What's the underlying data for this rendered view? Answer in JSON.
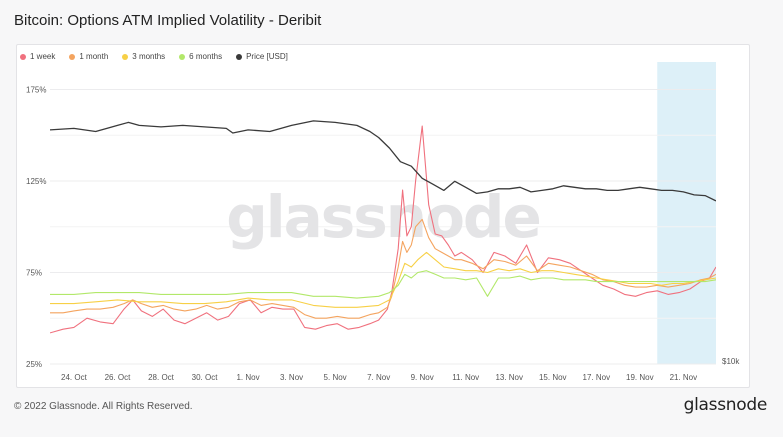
{
  "title": "Bitcoin: Options ATM Implied Volatility - Deribit",
  "footer": {
    "copyright": "© 2022 Glassnode. All Rights Reserved.",
    "logo": "glassnode"
  },
  "watermark": "glassnode",
  "chart_data": {
    "type": "line",
    "title": "Bitcoin: Options ATM Implied Volatility - Deribit",
    "legend_position": "top-left",
    "grid": "horizontal",
    "y_axis": {
      "ticks": [
        "175%",
        "125%",
        "75%",
        "25%"
      ],
      "tick_values": [
        175,
        125,
        75,
        25
      ],
      "ylim": [
        25,
        190
      ]
    },
    "y2_axis": {
      "label": "$10k"
    },
    "x_axis": {
      "ticks": [
        "24. Oct",
        "26. Oct",
        "28. Oct",
        "30. Oct",
        "1. Nov",
        "3. Nov",
        "5. Nov",
        "7. Nov",
        "9. Nov",
        "11. Nov",
        "13. Nov",
        "15. Nov",
        "17. Nov",
        "19. Nov",
        "21. Nov"
      ],
      "xlim_days": [
        22.9,
        53.5
      ]
    },
    "highlight_region": {
      "from": "19.8 Nov",
      "to": "21.6 Nov",
      "color": "#cfeaf5"
    },
    "series": [
      {
        "name": "1 week",
        "color": "#f0717e",
        "axis": "left",
        "x": [
          22.9,
          23.5,
          24.0,
          24.6,
          25.2,
          25.8,
          26.3,
          26.7,
          27.1,
          27.6,
          28.1,
          28.6,
          29.1,
          29.6,
          30.1,
          30.6,
          31.1,
          31.6,
          32.1,
          32.6,
          33.1,
          33.6,
          34.1,
          34.6,
          35.1,
          35.6,
          36.1,
          36.6,
          37.1,
          37.6,
          38.0,
          38.4,
          38.6,
          38.9,
          39.1,
          39.3,
          39.5,
          39.7,
          40.0,
          40.3,
          40.6,
          40.9,
          41.2,
          41.5,
          41.8,
          42.3,
          42.8,
          43.3,
          43.8,
          44.3,
          44.8,
          45.3,
          45.8,
          46.3,
          46.8,
          47.3,
          47.8,
          48.3,
          48.8,
          49.3,
          49.8,
          50.3,
          50.8,
          51.3,
          51.8,
          52.3,
          52.8,
          53.2,
          53.5
        ],
        "values": [
          42,
          44,
          45,
          50,
          48,
          47,
          55,
          60,
          54,
          51,
          55,
          49,
          47,
          50,
          53,
          49,
          51,
          58,
          60,
          53,
          56,
          55,
          55,
          45,
          44,
          46,
          47,
          44,
          45,
          47,
          49,
          55,
          64,
          88,
          120,
          95,
          100,
          125,
          155,
          112,
          96,
          95,
          90,
          84,
          86,
          82,
          75,
          86,
          84,
          80,
          90,
          75,
          83,
          82,
          80,
          76,
          72,
          68,
          66,
          63,
          62,
          64,
          65,
          63,
          64,
          66,
          70,
          72,
          78
        ]
      },
      {
        "name": "1 month",
        "color": "#f4a45f",
        "axis": "left",
        "x": [
          22.9,
          23.5,
          24.0,
          24.6,
          25.2,
          25.8,
          26.3,
          26.7,
          27.1,
          27.6,
          28.1,
          28.6,
          29.1,
          29.6,
          30.1,
          30.6,
          31.1,
          31.6,
          32.1,
          32.6,
          33.1,
          33.6,
          34.1,
          34.6,
          35.1,
          35.6,
          36.1,
          36.6,
          37.1,
          37.6,
          38.0,
          38.4,
          38.6,
          38.9,
          39.1,
          39.3,
          39.5,
          39.7,
          40.0,
          40.3,
          40.6,
          40.9,
          41.2,
          41.5,
          41.8,
          42.3,
          42.8,
          43.3,
          43.8,
          44.3,
          44.8,
          45.3,
          45.8,
          46.3,
          46.8,
          47.3,
          47.8,
          48.3,
          48.8,
          49.3,
          49.8,
          50.3,
          50.8,
          51.3,
          51.8,
          52.3,
          52.8,
          53.2,
          53.5
        ],
        "values": [
          53,
          53,
          54,
          55,
          55,
          56,
          58,
          60,
          58,
          56,
          57,
          55,
          54,
          55,
          57,
          55,
          56,
          59,
          60,
          57,
          58,
          57,
          56,
          52,
          50,
          50,
          51,
          50,
          50,
          52,
          53,
          56,
          62,
          78,
          92,
          86,
          90,
          100,
          104,
          94,
          88,
          86,
          84,
          82,
          82,
          80,
          77,
          82,
          81,
          79,
          84,
          76,
          80,
          79,
          78,
          76,
          74,
          71,
          70,
          68,
          67,
          67,
          68,
          67,
          68,
          69,
          71,
          72,
          74
        ]
      },
      {
        "name": "3 months",
        "color": "#f7d046",
        "axis": "left",
        "x": [
          22.9,
          24.0,
          25.0,
          26.0,
          27.0,
          28.0,
          29.0,
          30.0,
          31.0,
          32.0,
          33.0,
          34.0,
          35.0,
          36.0,
          37.0,
          38.0,
          38.5,
          38.9,
          39.2,
          39.5,
          39.8,
          40.2,
          40.6,
          41.0,
          41.5,
          42.0,
          42.5,
          43.0,
          43.5,
          44.0,
          44.5,
          45.0,
          45.5,
          46.0,
          46.5,
          47.0,
          47.5,
          48.0,
          48.5,
          49.0,
          49.5,
          50.0,
          50.5,
          51.0,
          51.5,
          52.0,
          52.5,
          53.0,
          53.5
        ],
        "values": [
          58,
          58,
          59,
          60,
          59,
          59,
          58,
          58,
          59,
          61,
          60,
          60,
          57,
          56,
          56,
          57,
          60,
          70,
          80,
          78,
          82,
          86,
          82,
          78,
          77,
          76,
          76,
          75,
          77,
          76,
          77,
          75,
          76,
          76,
          75,
          74,
          73,
          72,
          71,
          70,
          69,
          69,
          69,
          68,
          69,
          69,
          70,
          71,
          72
        ]
      },
      {
        "name": "6 months",
        "color": "#b2e86a",
        "axis": "left",
        "x": [
          22.9,
          24.0,
          25.0,
          26.0,
          27.0,
          28.0,
          29.0,
          30.0,
          31.0,
          32.0,
          33.0,
          34.0,
          35.0,
          36.0,
          37.0,
          38.0,
          38.5,
          38.9,
          39.2,
          39.5,
          39.8,
          40.2,
          40.6,
          41.0,
          41.5,
          42.0,
          42.5,
          43.0,
          43.5,
          44.0,
          44.5,
          45.0,
          45.5,
          46.0,
          46.5,
          47.0,
          47.5,
          48.0,
          48.5,
          49.0,
          49.5,
          50.0,
          50.5,
          51.0,
          51.5,
          52.0,
          52.5,
          53.0,
          53.5
        ],
        "values": [
          63,
          63,
          64,
          64,
          64,
          63,
          63,
          63,
          63,
          64,
          64,
          64,
          62,
          62,
          61,
          62,
          64,
          68,
          74,
          72,
          75,
          76,
          74,
          72,
          72,
          71,
          72,
          62,
          72,
          72,
          73,
          71,
          72,
          72,
          71,
          71,
          71,
          70,
          70,
          70,
          70,
          70,
          70,
          70,
          70,
          70,
          70,
          70,
          71
        ]
      },
      {
        "name": "Price [USD]",
        "color": "#3a3a3a",
        "axis": "right",
        "x": [
          22.9,
          24.0,
          25.0,
          26.0,
          26.5,
          27.0,
          28.0,
          29.0,
          30.0,
          31.0,
          31.3,
          32.0,
          33.0,
          34.0,
          35.0,
          36.0,
          37.0,
          37.6,
          38.0,
          38.5,
          39.0,
          39.5,
          40.0,
          40.5,
          41.0,
          41.5,
          42.0,
          42.5,
          43.0,
          43.5,
          44.0,
          44.5,
          45.0,
          45.5,
          46.0,
          46.5,
          47.0,
          47.5,
          48.0,
          48.5,
          49.0,
          49.5,
          50.0,
          50.5,
          51.0,
          51.5,
          52.0,
          52.5,
          53.0,
          53.5
        ],
        "values": [
          20500,
          20600,
          20400,
          20800,
          21000,
          20800,
          20700,
          20800,
          20700,
          20600,
          20300,
          20500,
          20400,
          20800,
          21100,
          21000,
          20800,
          20400,
          20000,
          19300,
          18400,
          18100,
          17300,
          16900,
          16500,
          17100,
          16700,
          16300,
          16400,
          16600,
          16600,
          16700,
          16400,
          16500,
          16600,
          16800,
          16700,
          16600,
          16600,
          16500,
          16500,
          16600,
          16700,
          16600,
          16500,
          16500,
          16400,
          16200,
          16150,
          15800
        ]
      }
    ]
  }
}
